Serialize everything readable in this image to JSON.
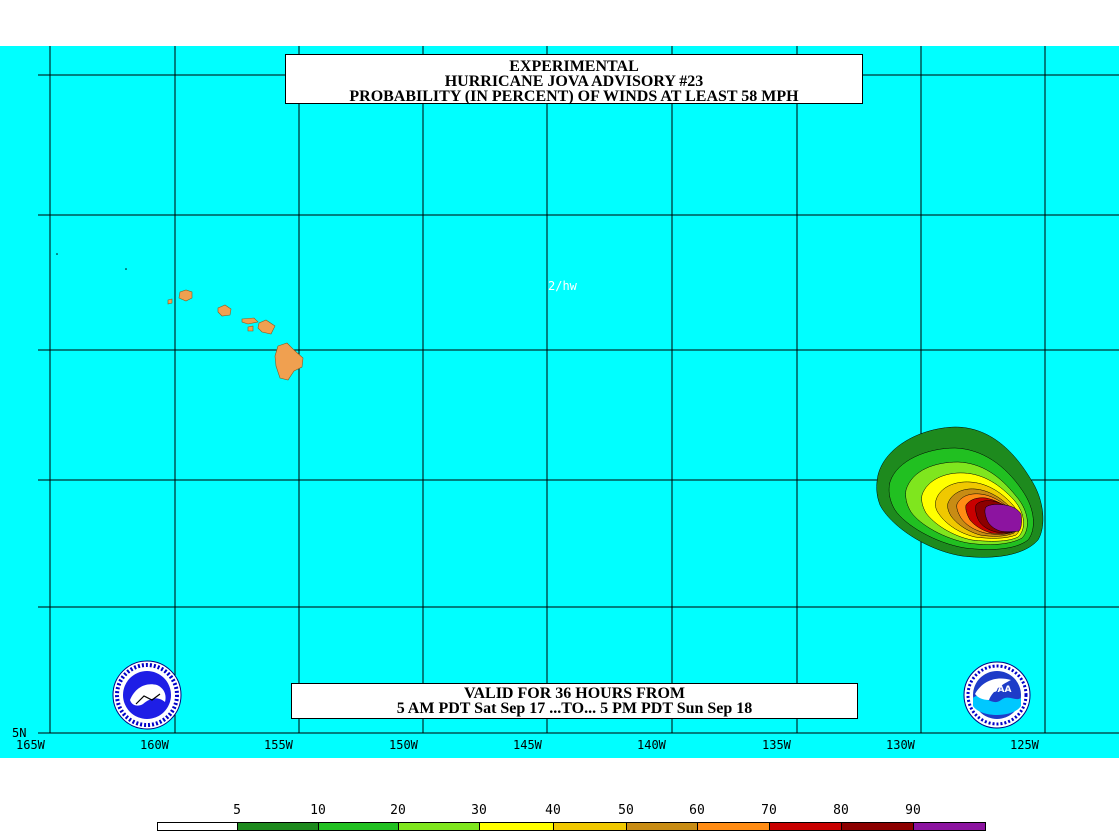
{
  "title": {
    "line1": "EXPERIMENTAL",
    "line2": "HURRICANE JOVA ADVISORY #23",
    "line3": "PROBABILITY (IN PERCENT) OF WINDS AT LEAST 58 MPH"
  },
  "valid": {
    "line1": "VALID FOR 36 HOURS FROM",
    "line2": "5 AM PDT Sat Sep 17 ...TO... 5 PM PDT Sun Sep 18"
  },
  "credit": "2/hw",
  "lat_label": "5N",
  "lon_labels": [
    "165W",
    "160W",
    "155W",
    "150W",
    "145W",
    "140W",
    "135W",
    "130W",
    "125W"
  ],
  "legend": {
    "values": [
      "5",
      "10",
      "20",
      "30",
      "40",
      "50",
      "60",
      "70",
      "80",
      "90"
    ],
    "colors": [
      "#ffffff",
      "#1e8a1e",
      "#21c021",
      "#7fe61e",
      "#ffff00",
      "#f0c800",
      "#c88c14",
      "#ff8c14",
      "#c80000",
      "#8c0000",
      "#8c14a0"
    ]
  },
  "colors": {
    "ocean": "#00ffff",
    "land": "#f0a050",
    "grid": "#000000"
  },
  "logos": {
    "left": "nws-logo-icon",
    "right": "noaa-logo-icon"
  }
}
